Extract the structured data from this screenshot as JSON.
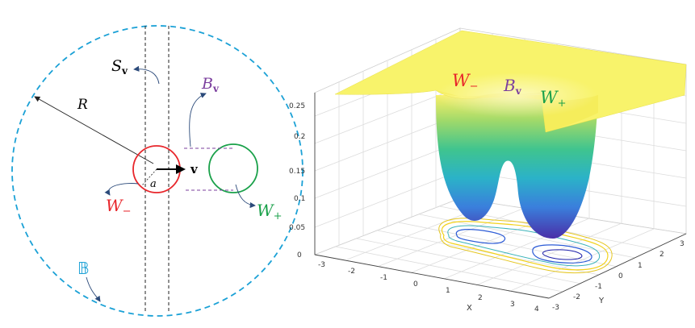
{
  "colors": {
    "ball": "#1ba1d6",
    "w_minus": "#e8262b",
    "w_plus": "#1aa14a",
    "b_v": "#7b3f9e",
    "arrow": "#2b4a7a",
    "surface_top": "#f8f36b"
  },
  "left_diagram": {
    "label_S": "S",
    "label_S_sub": "v",
    "label_B": "B",
    "label_B_sub": "v",
    "label_R": "R",
    "label_v": "v",
    "label_a": "a",
    "label_W_minus": "W",
    "label_W_minus_sub": "−",
    "label_W_plus": "W",
    "label_W_plus_sub": "+",
    "label_ball": "𝔹"
  },
  "right_plot": {
    "overlay_W_minus": "W",
    "overlay_W_minus_sub": "−",
    "overlay_B": "B",
    "overlay_B_sub": "v",
    "overlay_W_plus": "W",
    "overlay_W_plus_sub": "+",
    "xlabel": "X",
    "ylabel": "Y",
    "z_ticks": [
      "0",
      "0.05",
      "0.1",
      "0.15",
      "0.2",
      "0.25"
    ],
    "x_ticks": [
      "-3",
      "-2",
      "-1",
      "0",
      "1",
      "2",
      "3",
      "4"
    ],
    "y_ticks": [
      "-3",
      "-2",
      "-1",
      "0",
      "1",
      "2",
      "3"
    ]
  }
}
